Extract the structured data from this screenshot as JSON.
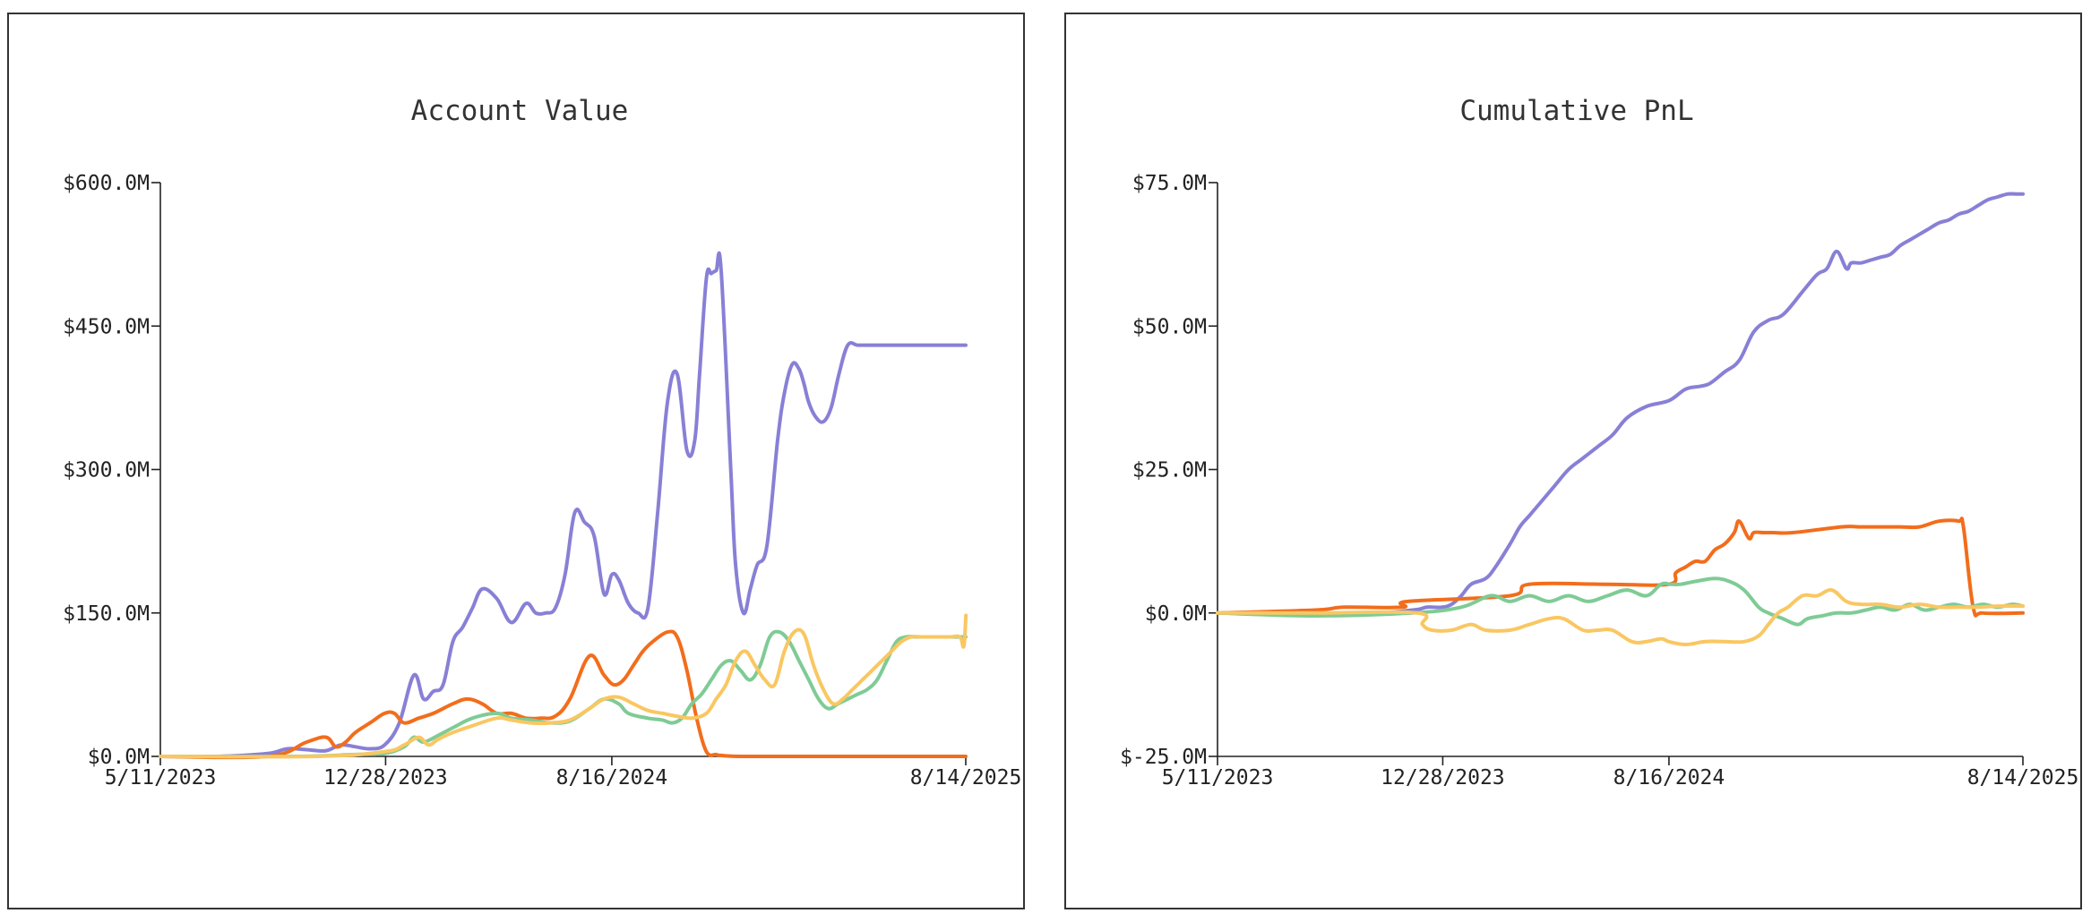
{
  "colors": {
    "purple": "#8880d6",
    "orange": "#f26d1c",
    "green": "#7fcb95",
    "yellow": "#f9c762",
    "axis": "#222222",
    "text": "#333333"
  },
  "chart_data": [
    {
      "type": "line",
      "title": "Account Value",
      "xlabel": "",
      "ylabel": "",
      "x_ticks": [
        "5/11/2023",
        "12/28/2023",
        "8/16/2024",
        "8/14/2025"
      ],
      "x_tick_index": [
        0,
        231,
        463,
        826
      ],
      "xlim": [
        0,
        826
      ],
      "y_ticks": [
        "$0.0M",
        "$150.0M",
        "$300.0M",
        "$450.0M",
        "$600.0M"
      ],
      "y_tick_values": [
        0,
        150,
        300,
        450,
        600
      ],
      "ylim": [
        0,
        600
      ],
      "units": "USD millions",
      "grid": false,
      "legend": "none",
      "series": [
        {
          "name": "purple",
          "color": "#8880d6",
          "x": [
            0,
            60,
            110,
            130,
            150,
            170,
            185,
            200,
            215,
            230,
            245,
            260,
            270,
            280,
            290,
            300,
            310,
            320,
            330,
            345,
            360,
            375,
            385,
            395,
            405,
            415,
            425,
            435,
            445,
            455,
            463,
            470,
            480,
            490,
            500,
            510,
            520,
            530,
            540,
            548,
            553,
            560,
            565,
            570,
            575,
            585,
            590,
            598,
            605,
            612,
            622,
            633,
            640,
            648,
            655,
            660,
            665,
            672,
            680,
            688,
            696,
            705,
            715,
            725,
            735,
            745,
            755,
            765,
            775,
            785,
            795,
            800,
            810,
            815,
            820,
            826
          ],
          "y": [
            0,
            0,
            3,
            8,
            7,
            6,
            12,
            10,
            8,
            12,
            35,
            85,
            60,
            68,
            75,
            120,
            135,
            155,
            175,
            165,
            140,
            160,
            150,
            150,
            155,
            190,
            255,
            245,
            230,
            170,
            190,
            185,
            160,
            150,
            155,
            255,
            370,
            400,
            320,
            330,
            400,
            500,
            505,
            508,
            510,
            300,
            200,
            150,
            175,
            200,
            220,
            330,
            380,
            410,
            405,
            390,
            370,
            355,
            350,
            365,
            400,
            430,
            430,
            430,
            430,
            430,
            430,
            430,
            430,
            430,
            430,
            430,
            430,
            430,
            430,
            430
          ]
        },
        {
          "name": "orange",
          "color": "#f26d1c",
          "x": [
            0,
            110,
            150,
            170,
            180,
            190,
            200,
            215,
            230,
            240,
            250,
            265,
            280,
            300,
            315,
            330,
            345,
            360,
            375,
            390,
            405,
            420,
            440,
            455,
            465,
            475,
            485,
            495,
            505,
            520,
            530,
            540,
            550,
            560,
            570,
            575,
            600,
            700,
            826
          ],
          "y": [
            0,
            0,
            15,
            20,
            10,
            15,
            25,
            35,
            45,
            45,
            35,
            40,
            45,
            55,
            60,
            55,
            45,
            45,
            40,
            40,
            42,
            60,
            105,
            85,
            75,
            80,
            95,
            110,
            120,
            130,
            125,
            90,
            40,
            5,
            2,
            1,
            0,
            0,
            0
          ]
        },
        {
          "name": "green",
          "color": "#7fcb95",
          "x": [
            0,
            140,
            200,
            230,
            250,
            260,
            270,
            285,
            300,
            320,
            345,
            360,
            380,
            400,
            420,
            440,
            455,
            470,
            480,
            500,
            515,
            525,
            535,
            545,
            555,
            565,
            575,
            585,
            595,
            605,
            615,
            625,
            635,
            645,
            655,
            665,
            675,
            685,
            695,
            705,
            715,
            725,
            735,
            745,
            755,
            765,
            775,
            785,
            795,
            805,
            815,
            826
          ],
          "y": [
            0,
            0,
            2,
            3,
            10,
            20,
            15,
            22,
            30,
            40,
            45,
            40,
            38,
            35,
            37,
            50,
            60,
            55,
            45,
            40,
            38,
            35,
            40,
            55,
            65,
            80,
            95,
            100,
            90,
            80,
            95,
            125,
            130,
            120,
            100,
            80,
            60,
            50,
            55,
            60,
            65,
            70,
            80,
            100,
            120,
            125,
            125,
            125,
            125,
            125,
            125,
            125
          ]
        },
        {
          "name": "yellow",
          "color": "#f9c762",
          "x": [
            0,
            160,
            230,
            250,
            265,
            275,
            285,
            300,
            320,
            345,
            360,
            380,
            400,
            420,
            440,
            455,
            470,
            485,
            500,
            515,
            530,
            545,
            560,
            570,
            580,
            590,
            600,
            610,
            620,
            630,
            640,
            650,
            660,
            670,
            680,
            690,
            700,
            710,
            720,
            730,
            740,
            750,
            760,
            770,
            780,
            790,
            800,
            810,
            820,
            824,
            826,
            826
          ],
          "y": [
            0,
            0,
            5,
            12,
            20,
            12,
            18,
            25,
            32,
            40,
            38,
            35,
            35,
            38,
            50,
            60,
            62,
            55,
            48,
            45,
            42,
            40,
            45,
            60,
            75,
            100,
            110,
            95,
            80,
            75,
            110,
            130,
            128,
            95,
            70,
            55,
            60,
            70,
            80,
            90,
            100,
            110,
            120,
            125,
            125,
            125,
            125,
            125,
            125,
            115,
            145,
            145
          ]
        }
      ]
    },
    {
      "type": "line",
      "title": "Cumulative PnL",
      "xlabel": "",
      "ylabel": "",
      "x_ticks": [
        "5/11/2023",
        "12/28/2023",
        "8/16/2024",
        "8/14/2025"
      ],
      "x_tick_index": [
        0,
        231,
        463,
        826
      ],
      "xlim": [
        0,
        826
      ],
      "y_ticks": [
        "$-25.0M",
        "$0.0M",
        "$25.0M",
        "$50.0M",
        "$75.0M"
      ],
      "y_tick_values": [
        -25,
        0,
        25,
        50,
        75
      ],
      "ylim": [
        -25,
        75
      ],
      "units": "USD millions",
      "grid": false,
      "legend": "none",
      "series": [
        {
          "name": "purple",
          "color": "#8880d6",
          "x": [
            0,
            150,
            200,
            215,
            230,
            240,
            250,
            260,
            275,
            285,
            300,
            310,
            320,
            330,
            345,
            360,
            375,
            390,
            405,
            420,
            440,
            463,
            480,
            495,
            505,
            520,
            535,
            550,
            565,
            580,
            600,
            615,
            625,
            635,
            645,
            650,
            660,
            670,
            680,
            690,
            700,
            710,
            720,
            730,
            740,
            750,
            760,
            770,
            780,
            790,
            800,
            810,
            820,
            826
          ],
          "y": [
            0,
            0,
            0.5,
            1,
            1,
            1.5,
            3,
            5,
            6,
            8,
            12,
            15,
            17,
            19,
            22,
            25,
            27,
            29,
            31,
            34,
            36,
            37,
            39,
            39.5,
            40,
            42,
            44,
            49,
            51,
            52,
            56,
            59,
            60,
            63,
            60,
            61,
            61,
            61.5,
            62,
            62.5,
            64,
            65,
            66,
            67,
            68,
            68.5,
            69.5,
            70,
            71,
            72,
            72.5,
            73,
            73,
            73
          ]
        },
        {
          "name": "orange",
          "color": "#f26d1c",
          "x": [
            0,
            100,
            130,
            190,
            195,
            300,
            320,
            400,
            463,
            470,
            480,
            490,
            500,
            510,
            520,
            530,
            535,
            545,
            550,
            560,
            570,
            590,
            640,
            660,
            680,
            700,
            720,
            740,
            760,
            765,
            775,
            785,
            826
          ],
          "y": [
            0,
            0.5,
            1,
            1,
            2,
            3,
            5,
            5,
            5,
            7,
            8,
            9,
            9,
            11,
            12,
            14,
            16,
            13,
            14,
            14,
            14,
            14,
            15,
            15,
            15,
            15,
            15,
            16,
            16,
            15,
            1,
            0,
            0
          ]
        },
        {
          "name": "green",
          "color": "#7fcb95",
          "x": [
            0,
            100,
            200,
            250,
            280,
            300,
            320,
            340,
            360,
            380,
            400,
            420,
            440,
            455,
            465,
            475,
            490,
            510,
            525,
            540,
            555,
            565,
            580,
            595,
            605,
            620,
            635,
            650,
            665,
            680,
            695,
            710,
            725,
            740,
            755,
            770,
            785,
            800,
            815,
            826
          ],
          "y": [
            0,
            -0.5,
            0,
            1,
            3,
            2,
            3,
            2,
            3,
            2,
            3,
            4,
            3,
            5,
            5,
            5,
            5.5,
            6,
            5.5,
            4,
            1,
            0,
            -1,
            -2,
            -1,
            -0.5,
            0,
            0,
            0.5,
            1,
            0.5,
            1.5,
            0.5,
            1,
            1.5,
            1,
            1.5,
            1,
            1.5,
            1.2
          ]
        },
        {
          "name": "yellow",
          "color": "#f9c762",
          "x": [
            0,
            100,
            205,
            210,
            220,
            240,
            260,
            275,
            300,
            320,
            340,
            355,
            375,
            390,
            405,
            425,
            440,
            455,
            463,
            480,
            500,
            520,
            540,
            555,
            565,
            575,
            585,
            600,
            615,
            630,
            645,
            660,
            680,
            700,
            720,
            740,
            760,
            780,
            800,
            826
          ],
          "y": [
            0,
            0,
            0,
            -2,
            -3,
            -3,
            -2,
            -3,
            -3,
            -2,
            -1,
            -1,
            -3,
            -3,
            -3,
            -5,
            -5,
            -4.5,
            -5,
            -5.5,
            -5,
            -5,
            -5,
            -4,
            -2,
            0,
            1,
            3,
            3,
            4,
            2,
            1.5,
            1.5,
            1,
            1.5,
            1,
            1,
            1,
            1.2,
            1.2
          ]
        }
      ]
    }
  ]
}
